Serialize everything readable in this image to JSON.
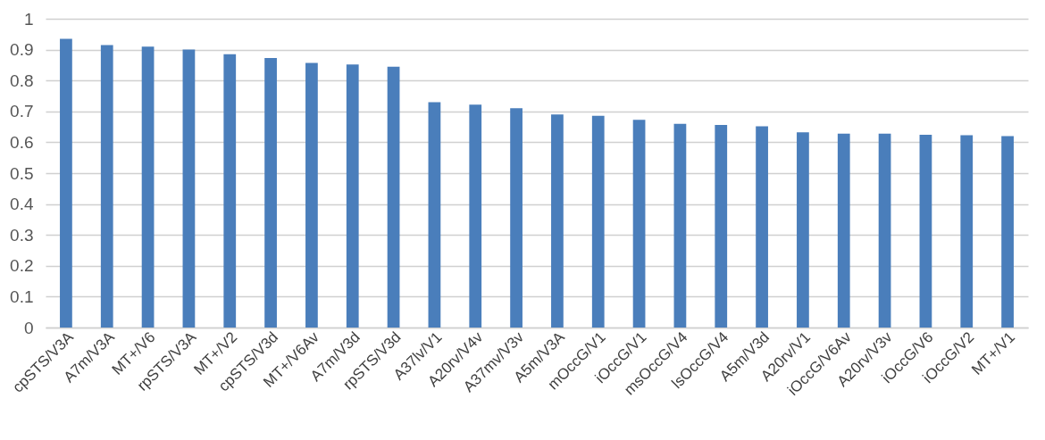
{
  "chart_data": {
    "type": "bar",
    "categories": [
      "cpSTS/V3A",
      "A7m/V3A",
      "MT+/V6",
      "rpSTS/V3A",
      "MT+/V2",
      "cpSTS/V3d",
      "MT+/V6Av",
      "A7m/V3d",
      "rpSTS/V3d",
      "A37lv/V1",
      "A20rv/V4v",
      "A37mv/V3v",
      "A5m/V3A",
      "mOccG/V1",
      "iOccG/V1",
      "msOccG/V4",
      "lsOccG/V4",
      "A5m/V3d",
      "A20rv/V1",
      "iOccG/V6Av",
      "A20rv/V3v",
      "iOccG/V6",
      "iOccG/V2",
      "MT+/V1"
    ],
    "values": [
      0.935,
      0.915,
      0.91,
      0.9,
      0.885,
      0.873,
      0.857,
      0.852,
      0.845,
      0.73,
      0.722,
      0.71,
      0.69,
      0.686,
      0.673,
      0.66,
      0.656,
      0.652,
      0.632,
      0.628,
      0.628,
      0.624,
      0.623,
      0.62
    ],
    "color": "#4a7ebb",
    "ylim": [
      0,
      1
    ],
    "yticks": [
      0,
      0.1,
      0.2,
      0.3,
      0.4,
      0.5,
      0.6,
      0.7,
      0.8,
      0.9,
      1
    ],
    "grid": "y"
  }
}
